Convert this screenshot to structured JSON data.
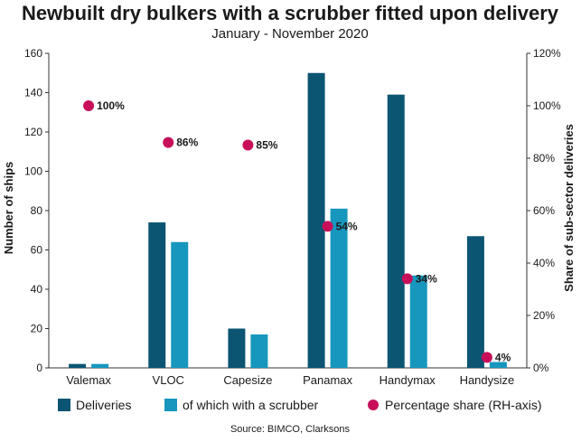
{
  "chart_data": {
    "type": "bar",
    "title": "Newbuilt dry bulkers with a scrubber fitted upon delivery",
    "subtitle": "January - November 2020",
    "source": "Source: BIMCO, Clarksons",
    "categories": [
      "Valemax",
      "VLOC",
      "Capesize",
      "Panamax",
      "Handymax",
      "Handysize"
    ],
    "series": [
      {
        "name": "Deliveries",
        "type": "bar",
        "axis": "left",
        "color": "#0b5573",
        "values": [
          2,
          74,
          20,
          150,
          139,
          67
        ]
      },
      {
        "name": "of which with a scrubber",
        "type": "bar",
        "axis": "left",
        "color": "#1797bd",
        "values": [
          2,
          64,
          17,
          81,
          47,
          3
        ]
      },
      {
        "name": "Percentage share (RH-axis)",
        "type": "scatter",
        "axis": "right",
        "color": "#c8105a",
        "values": [
          100,
          86,
          85,
          54,
          34,
          4
        ],
        "labels": [
          "100%",
          "86%",
          "85%",
          "54%",
          "34%",
          "4%"
        ]
      }
    ],
    "ylabel": "Number of ships",
    "y2label": "Share of sub-sector deliveries",
    "ylim": [
      0,
      160
    ],
    "yticks": [
      "0",
      "20",
      "40",
      "60",
      "80",
      "100",
      "120",
      "140",
      "160"
    ],
    "y2lim": [
      0,
      120
    ],
    "y2ticks": [
      "0%",
      "20%",
      "40%",
      "60%",
      "80%",
      "100%",
      "120%"
    ],
    "grid": false,
    "legend": "bottom"
  }
}
